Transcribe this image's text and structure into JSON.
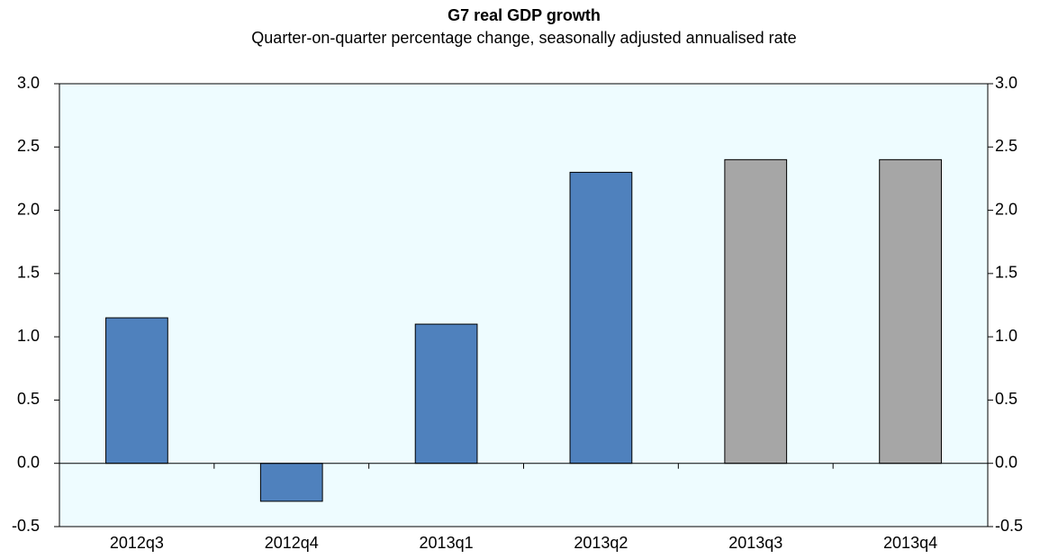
{
  "chart_data": {
    "type": "bar",
    "title": "G7 real GDP growth",
    "subtitle": "Quarter-on-quarter percentage change, seasonally adjusted annualised rate",
    "categories": [
      "2012q3",
      "2012q4",
      "2013q1",
      "2013q2",
      "2013q3",
      "2013q4"
    ],
    "values": [
      1.15,
      -0.3,
      1.1,
      2.3,
      2.4,
      2.4
    ],
    "colors": [
      "#4f81bd",
      "#4f81bd",
      "#4f81bd",
      "#4f81bd",
      "#a6a6a6",
      "#a6a6a6"
    ],
    "ylim": [
      -0.5,
      3
    ],
    "yticks": [
      {
        "value": -0.5,
        "label": "-0.5"
      },
      {
        "value": 0,
        "label": "0.0"
      },
      {
        "value": 0.5,
        "label": "0.5"
      },
      {
        "value": 1,
        "label": "1.0"
      },
      {
        "value": 1.5,
        "label": "1.5"
      },
      {
        "value": 2,
        "label": "2.0"
      },
      {
        "value": 2.5,
        "label": "2.5"
      },
      {
        "value": 3,
        "label": "3.0"
      }
    ],
    "y2lim": [
      -0.5,
      3
    ],
    "y2ticks": [
      {
        "value": -0.5,
        "label": "-0.5"
      },
      {
        "value": 0,
        "label": "0.0"
      },
      {
        "value": 0.5,
        "label": "0.5"
      },
      {
        "value": 1,
        "label": "1.0"
      },
      {
        "value": 1.5,
        "label": "1.5"
      },
      {
        "value": 2,
        "label": "2.0"
      },
      {
        "value": 2.5,
        "label": "2.5"
      },
      {
        "value": 3,
        "label": "3.0"
      }
    ],
    "grid": false
  }
}
